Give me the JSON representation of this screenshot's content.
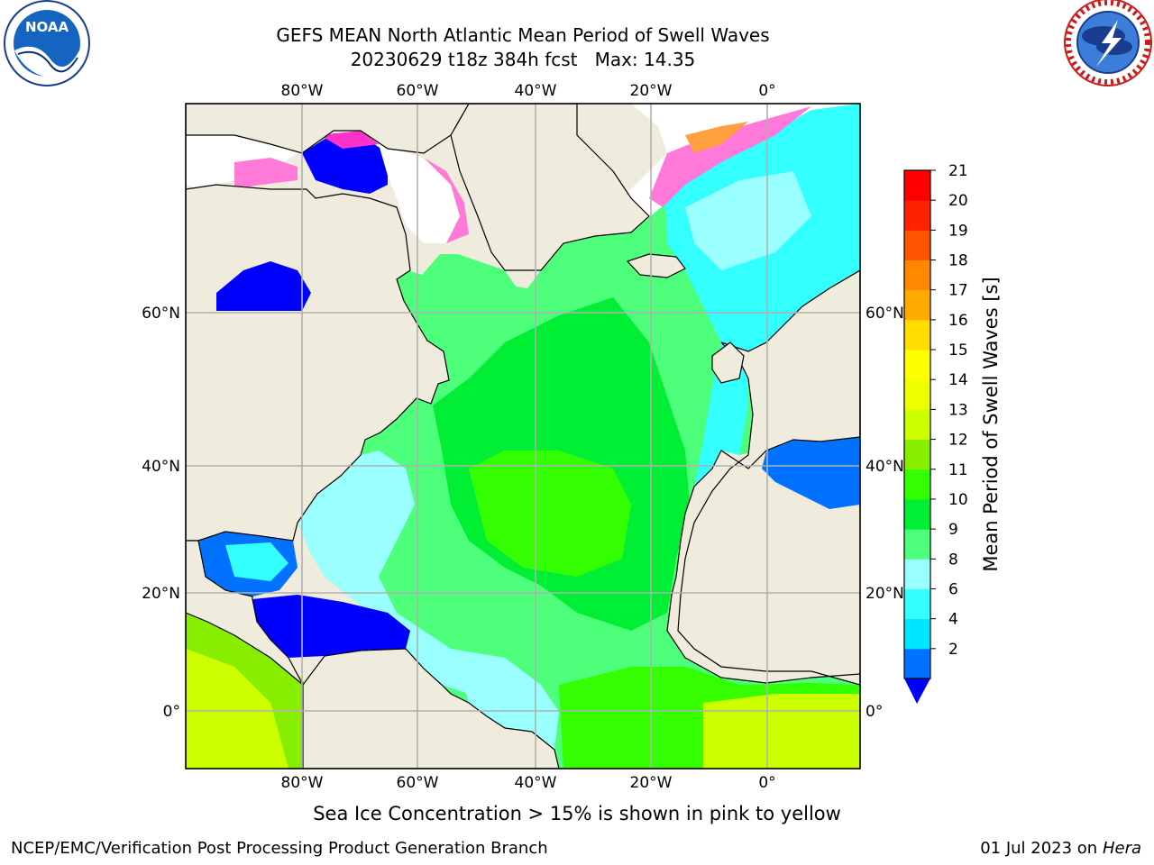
{
  "header": {
    "title_line1": "GEFS MEAN North Atlantic Mean Period of Swell Waves",
    "title_line2": "20230629 t18z 384h fcst   Max: 14.35"
  },
  "logos": {
    "left": {
      "name": "noaa-logo",
      "text": "NOAA"
    },
    "right": {
      "name": "nws-logo",
      "text": "NATIONAL WEATHER SERVICE"
    }
  },
  "map": {
    "longitude_ticks_top": [
      "80°W",
      "60°W",
      "40°W",
      "20°W",
      "0°"
    ],
    "longitude_ticks_bottom": [
      "80°W",
      "60°W",
      "40°W",
      "20°W",
      "0°"
    ],
    "latitude_ticks_left": [
      "60°N",
      "40°N",
      "20°N",
      "0°"
    ],
    "latitude_ticks_right": [
      "60°N",
      "40°N",
      "20°N",
      "0°"
    ],
    "colors": {
      "land": "#efecdd",
      "grid": "#b0b0b0",
      "ice_white": "#ffffff",
      "ice_pink": "#ff7ad8",
      "ice_magenta": "#ff33cc",
      "ice_orange": "#ffa040"
    }
  },
  "colorbar": {
    "label": "Mean Period of Swell Waves [s]",
    "tick_labels": [
      "21",
      "20",
      "19",
      "18",
      "17",
      "16",
      "15",
      "14",
      "13",
      "12",
      "11",
      "10",
      "9",
      "8",
      "6",
      "4",
      "2"
    ],
    "levels": [
      2,
      4,
      6,
      8,
      9,
      10,
      11,
      12,
      13,
      14,
      15,
      16,
      17,
      18,
      19,
      20,
      21
    ],
    "colors": [
      "#0072ff",
      "#00e5ff",
      "#33ffff",
      "#99ffff",
      "#4dff7a",
      "#00ee33",
      "#33ff00",
      "#88ee00",
      "#ccff00",
      "#eeff00",
      "#ffff00",
      "#ffdd00",
      "#ffaa00",
      "#ff8800",
      "#ff5500",
      "#ff2200",
      "#ff0000"
    ],
    "under_color": "#0000ff"
  },
  "caption": "Sea Ice Concentration > 15% is shown in pink to yellow",
  "footer": {
    "credit": "NCEP/EMC/Verification Post Processing Product Generation Branch",
    "date": "01 Jul 2023 on ",
    "machine": "Hera"
  }
}
